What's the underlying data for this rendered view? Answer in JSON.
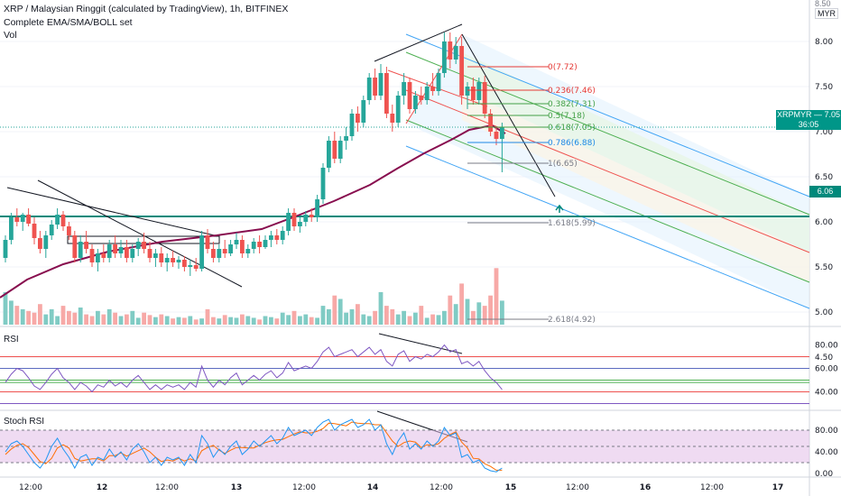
{
  "header": {
    "title": "XRP / Malaysian Ringgit (calculated by TradingView), 1h, BITFINEX",
    "indicator_1": "Complete EMA/SMA/BOLL set",
    "indicator_2": "Vol",
    "currency": "MYR",
    "corner_label": "8.50"
  },
  "badges": {
    "symbol": "XRPMYR",
    "price": "7.05",
    "countdown": "36:05",
    "level": "6.06"
  },
  "colors": {
    "up": "#26a69a",
    "down": "#ef5350",
    "ema": "#880e4f",
    "channel_blue": "#42a5f5",
    "channel_green": "#4caf50",
    "channel_red": "#ef5350",
    "level_line": "#00897b",
    "rsi_line": "#7e57c2",
    "stoch_k": "#2196f3",
    "stoch_d": "#ff6d00",
    "stoch_bg": "#e1bee7"
  },
  "panes": {
    "rsi_label": "RSI",
    "stoch_label": "Stoch RSI"
  },
  "chart_data": {
    "type": "candlestick",
    "title": "XRP / Malaysian Ringgit (calculated by TradingView), 1h, BITFINEX",
    "price_axis": {
      "ticks": [
        "8.00",
        "7.50",
        "7.00",
        "6.50",
        "6.00",
        "5.50",
        "5.00",
        "4.50"
      ],
      "range": [
        4.4,
        8.5
      ]
    },
    "time_axis": [
      "12:00",
      "12",
      "12:00",
      "13",
      "12:00",
      "14",
      "12:00",
      "15",
      "12:00",
      "16",
      "12:00",
      "17"
    ],
    "current_price": 7.05,
    "horizontal_level": 6.06,
    "fib_levels": [
      {
        "label": "0(7.72)",
        "value": 7.72
      },
      {
        "label": "0.236(7.46)",
        "value": 7.46
      },
      {
        "label": "0.382(7.31)",
        "value": 7.31
      },
      {
        "label": "0.5(7.18)",
        "value": 7.18
      },
      {
        "label": "0.618(7.05)",
        "value": 7.05
      },
      {
        "label": "0.786(6.88)",
        "value": 6.88
      },
      {
        "label": "1(6.65)",
        "value": 6.65
      },
      {
        "label": "1.618(5.99)",
        "value": 5.99
      },
      {
        "label": "2.618(4.92)",
        "value": 4.92
      }
    ],
    "candles": [
      [
        5.6,
        5.85,
        5.55,
        5.8
      ],
      [
        5.8,
        6.1,
        5.75,
        6.05
      ],
      [
        6.05,
        6.15,
        5.95,
        6.0
      ],
      [
        6.0,
        6.1,
        5.9,
        6.08
      ],
      [
        6.08,
        6.15,
        5.95,
        5.98
      ],
      [
        5.98,
        6.05,
        5.75,
        5.82
      ],
      [
        5.82,
        5.9,
        5.65,
        5.7
      ],
      [
        5.7,
        5.9,
        5.6,
        5.85
      ],
      [
        5.85,
        6.02,
        5.8,
        5.97
      ],
      [
        5.97,
        6.15,
        5.92,
        6.08
      ],
      [
        6.08,
        6.12,
        5.9,
        5.95
      ],
      [
        5.95,
        6.0,
        5.8,
        5.85
      ],
      [
        5.85,
        5.9,
        5.55,
        5.6
      ],
      [
        5.6,
        5.85,
        5.55,
        5.78
      ],
      [
        5.78,
        5.9,
        5.65,
        5.7
      ],
      [
        5.7,
        5.75,
        5.5,
        5.55
      ],
      [
        5.55,
        5.7,
        5.45,
        5.65
      ],
      [
        5.65,
        5.75,
        5.55,
        5.6
      ],
      [
        5.6,
        5.8,
        5.55,
        5.75
      ],
      [
        5.75,
        5.85,
        5.6,
        5.65
      ],
      [
        5.65,
        5.8,
        5.6,
        5.72
      ],
      [
        5.72,
        5.8,
        5.55,
        5.6
      ],
      [
        5.6,
        5.75,
        5.55,
        5.7
      ],
      [
        5.7,
        5.82,
        5.62,
        5.78
      ],
      [
        5.78,
        5.88,
        5.65,
        5.7
      ],
      [
        5.7,
        5.78,
        5.55,
        5.6
      ],
      [
        5.6,
        5.7,
        5.5,
        5.65
      ],
      [
        5.65,
        5.72,
        5.5,
        5.55
      ],
      [
        5.55,
        5.65,
        5.45,
        5.6
      ],
      [
        5.6,
        5.68,
        5.5,
        5.55
      ],
      [
        5.55,
        5.62,
        5.48,
        5.58
      ],
      [
        5.58,
        5.62,
        5.45,
        5.5
      ],
      [
        5.5,
        5.58,
        5.4,
        5.52
      ],
      [
        5.52,
        5.6,
        5.45,
        5.48
      ],
      [
        5.48,
        5.9,
        5.45,
        5.85
      ],
      [
        5.85,
        5.92,
        5.65,
        5.7
      ],
      [
        5.7,
        5.78,
        5.55,
        5.6
      ],
      [
        5.6,
        5.75,
        5.55,
        5.7
      ],
      [
        5.7,
        5.8,
        5.6,
        5.65
      ],
      [
        5.65,
        5.8,
        5.62,
        5.75
      ],
      [
        5.75,
        5.88,
        5.7,
        5.8
      ],
      [
        5.8,
        5.85,
        5.6,
        5.65
      ],
      [
        5.65,
        5.75,
        5.6,
        5.7
      ],
      [
        5.7,
        5.82,
        5.65,
        5.78
      ],
      [
        5.78,
        5.85,
        5.65,
        5.72
      ],
      [
        5.72,
        5.85,
        5.7,
        5.8
      ],
      [
        5.8,
        5.9,
        5.72,
        5.85
      ],
      [
        5.85,
        5.92,
        5.75,
        5.8
      ],
      [
        5.8,
        5.95,
        5.75,
        5.9
      ],
      [
        5.9,
        6.15,
        5.85,
        6.1
      ],
      [
        6.1,
        6.15,
        5.9,
        5.95
      ],
      [
        5.95,
        6.05,
        5.88,
        6.0
      ],
      [
        6.0,
        6.12,
        5.95,
        6.08
      ],
      [
        6.08,
        6.15,
        6.0,
        6.05
      ],
      [
        6.05,
        6.3,
        6.0,
        6.25
      ],
      [
        6.25,
        6.65,
        6.2,
        6.6
      ],
      [
        6.6,
        6.95,
        6.55,
        6.9
      ],
      [
        6.9,
        7.0,
        6.65,
        6.7
      ],
      [
        6.7,
        6.95,
        6.65,
        6.9
      ],
      [
        6.9,
        7.05,
        6.8,
        6.95
      ],
      [
        6.95,
        7.25,
        6.9,
        7.2
      ],
      [
        7.2,
        7.28,
        7.0,
        7.1
      ],
      [
        7.1,
        7.4,
        7.05,
        7.35
      ],
      [
        7.35,
        7.65,
        7.3,
        7.6
      ],
      [
        7.6,
        7.7,
        7.35,
        7.4
      ],
      [
        7.4,
        7.75,
        7.35,
        7.65
      ],
      [
        7.65,
        7.72,
        7.15,
        7.2
      ],
      [
        7.2,
        7.3,
        7.0,
        7.1
      ],
      [
        7.1,
        7.45,
        7.05,
        7.4
      ],
      [
        7.4,
        7.65,
        7.3,
        7.55
      ],
      [
        7.55,
        7.6,
        7.2,
        7.25
      ],
      [
        7.25,
        7.45,
        7.2,
        7.4
      ],
      [
        7.4,
        7.5,
        7.3,
        7.35
      ],
      [
        7.35,
        7.55,
        7.3,
        7.5
      ],
      [
        7.5,
        7.65,
        7.4,
        7.45
      ],
      [
        7.45,
        7.7,
        7.4,
        7.65
      ],
      [
        7.65,
        8.1,
        7.6,
        8.0
      ],
      [
        8.0,
        8.1,
        7.7,
        7.8
      ],
      [
        7.8,
        8.05,
        7.75,
        7.95
      ],
      [
        7.95,
        8.05,
        7.3,
        7.4
      ],
      [
        7.4,
        7.55,
        7.25,
        7.5
      ],
      [
        7.5,
        7.6,
        7.3,
        7.35
      ],
      [
        7.35,
        7.6,
        7.3,
        7.55
      ],
      [
        7.55,
        7.62,
        7.15,
        7.2
      ],
      [
        7.2,
        7.25,
        6.95,
        7.0
      ],
      [
        7.0,
        7.05,
        6.85,
        6.92
      ],
      [
        6.92,
        7.1,
        6.55,
        7.05
      ]
    ],
    "volume": [
      95,
      70,
      55,
      45,
      40,
      35,
      60,
      30,
      45,
      25,
      55,
      40,
      35,
      50,
      30,
      25,
      40,
      30,
      45,
      35,
      25,
      30,
      40,
      20,
      35,
      28,
      22,
      30,
      25,
      18,
      22,
      20,
      25,
      15,
      18,
      45,
      22,
      18,
      28,
      22,
      20,
      30,
      25,
      20,
      15,
      25,
      22,
      18,
      35,
      28,
      40,
      25,
      30,
      22,
      20,
      55,
      45,
      85,
      75,
      35,
      45,
      60,
      30,
      25,
      40,
      95,
      55,
      45,
      30,
      40,
      25,
      35,
      55,
      20,
      30,
      28,
      40,
      85,
      60,
      120,
      75,
      40,
      65,
      55,
      85,
      165,
      70
    ],
    "rsi": [
      48,
      55,
      60,
      58,
      52,
      45,
      42,
      48,
      55,
      60,
      52,
      48,
      42,
      48,
      45,
      40,
      46,
      44,
      50,
      45,
      48,
      44,
      50,
      54,
      48,
      42,
      46,
      42,
      46,
      44,
      46,
      42,
      48,
      44,
      62,
      50,
      44,
      50,
      46,
      52,
      56,
      46,
      50,
      54,
      50,
      55,
      58,
      52,
      56,
      65,
      58,
      60,
      62,
      60,
      66,
      74,
      78,
      70,
      72,
      74,
      76,
      70,
      74,
      78,
      72,
      76,
      66,
      62,
      72,
      75,
      66,
      70,
      68,
      72,
      70,
      74,
      80,
      74,
      76,
      64,
      66,
      62,
      66,
      58,
      52,
      48,
      42
    ],
    "stoch_k": [
      40,
      55,
      60,
      50,
      35,
      20,
      10,
      25,
      50,
      65,
      45,
      30,
      10,
      30,
      35,
      15,
      30,
      25,
      45,
      30,
      40,
      25,
      45,
      55,
      40,
      20,
      30,
      15,
      30,
      25,
      30,
      15,
      35,
      20,
      70,
      55,
      30,
      45,
      35,
      50,
      60,
      35,
      45,
      60,
      50,
      60,
      70,
      55,
      65,
      85,
      70,
      75,
      80,
      70,
      85,
      95,
      100,
      80,
      90,
      95,
      100,
      85,
      90,
      100,
      80,
      90,
      55,
      35,
      60,
      75,
      45,
      55,
      45,
      60,
      50,
      60,
      85,
      70,
      75,
      30,
      35,
      20,
      25,
      10,
      5,
      3,
      10
    ],
    "stoch_d": [
      35,
      45,
      52,
      55,
      48,
      35,
      22,
      18,
      28,
      47,
      53,
      47,
      28,
      23,
      25,
      27,
      27,
      23,
      33,
      33,
      38,
      32,
      37,
      42,
      47,
      40,
      30,
      22,
      25,
      23,
      28,
      23,
      27,
      23,
      42,
      48,
      52,
      43,
      37,
      43,
      48,
      48,
      47,
      47,
      52,
      57,
      60,
      62,
      63,
      68,
      73,
      77,
      75,
      75,
      78,
      83,
      93,
      92,
      90,
      88,
      95,
      93,
      92,
      92,
      90,
      90,
      75,
      60,
      50,
      57,
      60,
      58,
      48,
      53,
      52,
      55,
      65,
      72,
      77,
      58,
      47,
      28,
      27,
      18,
      13,
      6,
      6
    ]
  }
}
